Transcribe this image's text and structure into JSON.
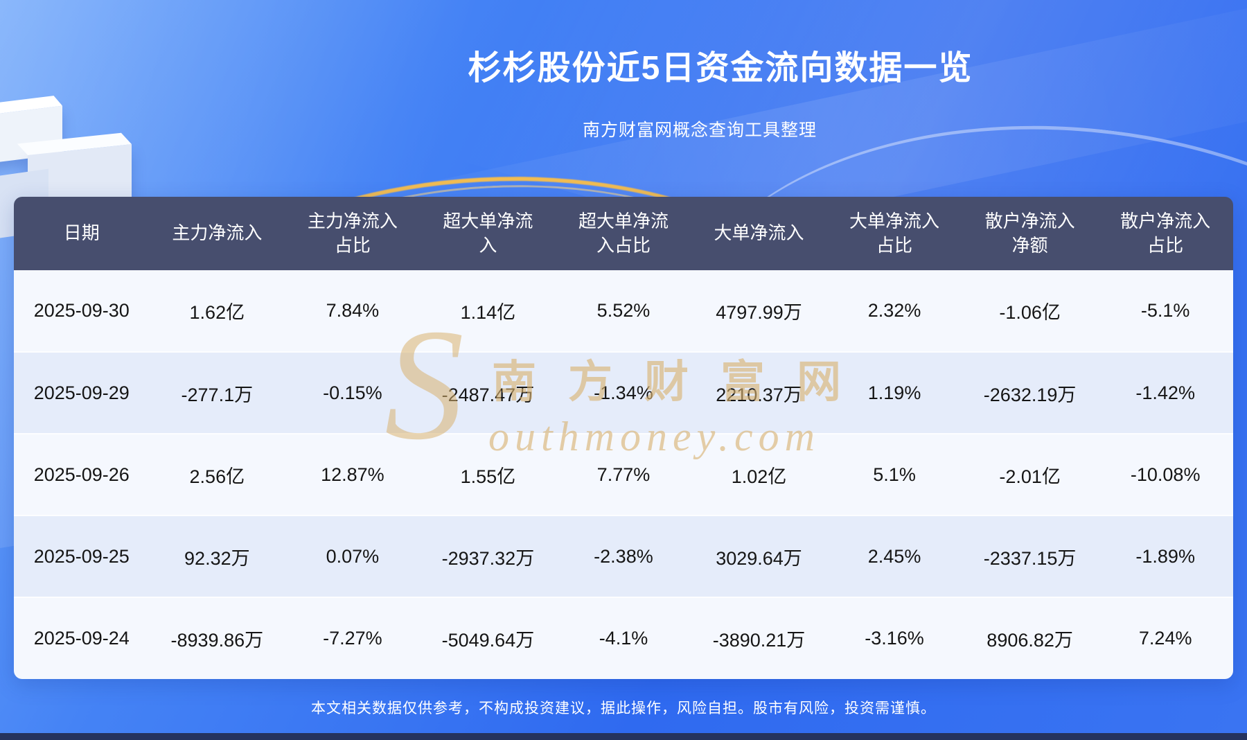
{
  "page": {
    "title": "杉杉股份近5日资金流向数据一览",
    "subtitle": "南方财富网概念查询工具整理",
    "disclaimer": "本文相关数据仅供参考，不构成投资建议，据此操作，风险自担。股市有风险，投资需谨慎。"
  },
  "watermark": {
    "initial": "S",
    "cn": "南方财富网",
    "en": "outhmoney.com"
  },
  "chart_data": {
    "type": "table",
    "title": "杉杉股份近5日资金流向数据一览",
    "columns": [
      "日期",
      "主力净流入",
      "主力净流入\n占比",
      "超大单净流\n入",
      "超大单净流\n入占比",
      "大单净流入",
      "大单净流入\n占比",
      "散户净流入\n净额",
      "散户净流入\n占比"
    ],
    "rows": [
      [
        "2025-09-30",
        "1.62亿",
        "7.84%",
        "1.14亿",
        "5.52%",
        "4797.99万",
        "2.32%",
        "-1.06亿",
        "-5.1%"
      ],
      [
        "2025-09-29",
        "-277.1万",
        "-0.15%",
        "-2487.47万",
        "-1.34%",
        "2210.37万",
        "1.19%",
        "-2632.19万",
        "-1.42%"
      ],
      [
        "2025-09-26",
        "2.56亿",
        "12.87%",
        "1.55亿",
        "7.77%",
        "1.02亿",
        "5.1%",
        "-2.01亿",
        "-10.08%"
      ],
      [
        "2025-09-25",
        "92.32万",
        "0.07%",
        "-2937.32万",
        "-2.38%",
        "3029.64万",
        "2.45%",
        "-2337.15万",
        "-1.89%"
      ],
      [
        "2025-09-24",
        "-8939.86万",
        "-7.27%",
        "-5049.64万",
        "-4.1%",
        "-3890.21万",
        "-3.16%",
        "8906.82万",
        "7.24%"
      ]
    ]
  },
  "colors": {
    "background_top": "#71a8fa",
    "background_bottom": "#2f6af0",
    "header_bg": "#474e6e",
    "row_light": "#f5f8fe",
    "row_shade": "#e5ecfa",
    "title_text": "#ffffff",
    "cell_text": "#151515",
    "watermark_gold": "#d8b270",
    "arc_gold": "#fabf4a",
    "bottom_bar": "#25335e"
  }
}
